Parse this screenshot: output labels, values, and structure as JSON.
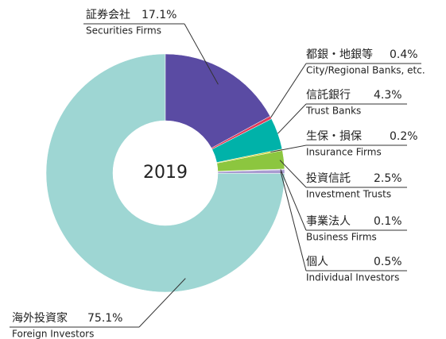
{
  "chart_data": {
    "type": "pie",
    "center_label": "2019",
    "categories": [
      "証券会社",
      "都銀・地銀等",
      "信託銀行",
      "生保・損保",
      "投資信託",
      "事業法人",
      "個人",
      "海外投資家"
    ],
    "categories_en": [
      "Securities Firms",
      "City/Regional Banks, etc.",
      "Trust Banks",
      "Insurance Firms",
      "Investment Trusts",
      "Business Firms",
      "Individual Investors",
      "Foreign Investors"
    ],
    "values": [
      17.1,
      0.4,
      4.3,
      0.2,
      2.5,
      0.1,
      0.5,
      75.1
    ],
    "value_labels": [
      "17.1%",
      "0.4%",
      "4.3%",
      "0.2%",
      "2.5%",
      "0.1%",
      "0.5%",
      "75.1%"
    ],
    "colors": [
      "#5a4ba3",
      "#e03c5a",
      "#00b2a9",
      "#d6d31e",
      "#8cc63f",
      "#b8b8b8",
      "#a99bd1",
      "#9ed6d3"
    ]
  }
}
